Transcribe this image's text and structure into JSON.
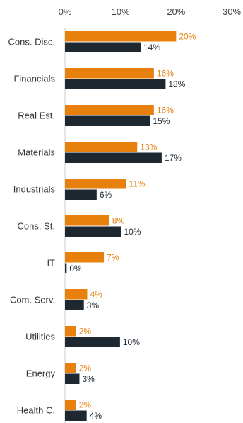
{
  "chart_data": {
    "type": "bar",
    "orientation": "horizontal",
    "xlim": [
      0,
      30
    ],
    "x_ticks": [
      "0%",
      "10%",
      "20%",
      "30%"
    ],
    "x_tick_values": [
      0,
      10,
      20,
      30
    ],
    "categories": [
      "Cons. Disc.",
      "Financials",
      "Real Est.",
      "Materials",
      "Industrials",
      "Cons. St.",
      "IT",
      "Com. Serv.",
      "Utilities",
      "Energy",
      "Health C."
    ],
    "series": [
      {
        "values": [
          20,
          16,
          16,
          13,
          11,
          8,
          7,
          4,
          2,
          2,
          2
        ],
        "labels": [
          "20%",
          "16%",
          "16%",
          "13%",
          "11%",
          "8%",
          "7%",
          "4%",
          "2%",
          "2%",
          "2%"
        ],
        "color": "#E8800E"
      },
      {
        "values": [
          13.6,
          18.1,
          15.3,
          17.4,
          5.7,
          10.1,
          0.3,
          3.4,
          9.9,
          2.6,
          3.9
        ],
        "labels": [
          "14%",
          "18%",
          "15%",
          "17%",
          "6%",
          "10%",
          "0%",
          "3%",
          "10%",
          "3%",
          "4%"
        ],
        "color": "#1E2831"
      }
    ],
    "label_colors": [
      "#E8800E",
      "#1E2831"
    ],
    "grid": false,
    "legend": "none"
  }
}
